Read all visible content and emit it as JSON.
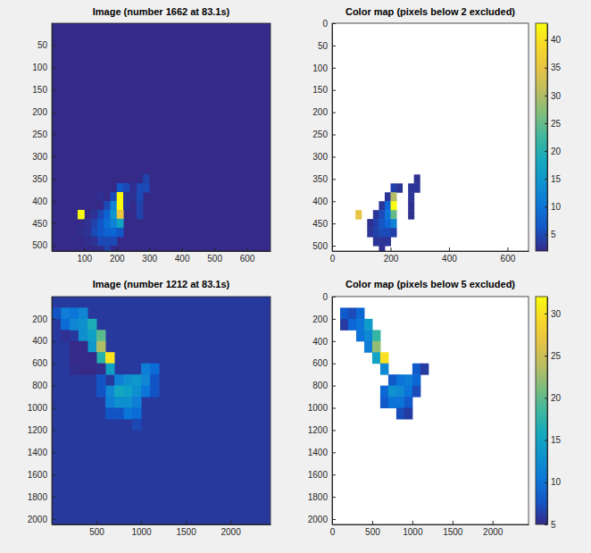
{
  "chart_data": [
    {
      "type": "heatmap",
      "cell_size": [
        20,
        20
      ],
      "background": 1,
      "image": {
        "title": "Image (number 1662 at 83.1s)",
        "xlim": [
          0.5,
          672.5
        ],
        "ylim": [
          0.5,
          512.5
        ],
        "xticks": [
          100,
          200,
          300,
          400,
          500,
          600
        ],
        "yticks": [
          50,
          100,
          150,
          200,
          250,
          300,
          350,
          400,
          450,
          500
        ],
        "clim": [
          1,
          30
        ]
      },
      "color_map": {
        "title": "Color map (pixels below 2 excluded)",
        "threshold": 2,
        "xlim": [
          0,
          672
        ],
        "ylim": [
          0,
          512
        ],
        "xticks": [
          0,
          200,
          400,
          600
        ],
        "yticks": [
          0,
          50,
          100,
          150,
          200,
          250,
          300,
          350,
          400,
          450,
          500
        ],
        "colorbar": {
          "range": [
            2,
            43
          ],
          "ticks": [
            5,
            10,
            15,
            20,
            25,
            30,
            35,
            40
          ]
        }
      },
      "cells": [
        [
          210,
          370,
          4
        ],
        [
          230,
          370,
          3
        ],
        [
          190,
          390,
          3
        ],
        [
          210,
          390,
          30
        ],
        [
          170,
          410,
          3
        ],
        [
          190,
          410,
          8
        ],
        [
          210,
          410,
          43
        ],
        [
          150,
          430,
          3
        ],
        [
          170,
          430,
          5
        ],
        [
          190,
          430,
          10
        ],
        [
          210,
          430,
          25
        ],
        [
          130,
          450,
          2.5
        ],
        [
          150,
          450,
          4
        ],
        [
          170,
          450,
          6
        ],
        [
          190,
          450,
          8
        ],
        [
          210,
          450,
          12
        ],
        [
          130,
          470,
          3
        ],
        [
          150,
          470,
          4
        ],
        [
          170,
          470,
          5
        ],
        [
          190,
          470,
          5
        ],
        [
          210,
          470,
          4
        ],
        [
          150,
          490,
          3
        ],
        [
          170,
          490,
          3
        ],
        [
          190,
          490,
          3
        ],
        [
          170,
          510,
          2.5
        ],
        [
          90,
          430,
          35
        ],
        [
          290,
          350,
          2.5
        ],
        [
          270,
          370,
          3
        ],
        [
          290,
          370,
          3
        ],
        [
          270,
          390,
          3
        ],
        [
          270,
          410,
          2.5
        ],
        [
          270,
          430,
          2.5
        ],
        [
          110,
          450,
          1.5
        ],
        [
          110,
          470,
          1.5
        ],
        [
          90,
          470,
          1.3
        ],
        [
          130,
          490,
          1.5
        ],
        [
          130,
          430,
          1.6
        ],
        [
          230,
          390,
          1.5
        ],
        [
          230,
          410,
          1.6
        ],
        [
          250,
          390,
          1.5
        ],
        [
          250,
          370,
          1.4
        ],
        [
          150,
          390,
          1.4
        ],
        [
          110,
          490,
          1.3
        ],
        [
          70,
          490,
          1.2
        ]
      ]
    },
    {
      "type": "heatmap",
      "cell_size": [
        100,
        100
      ],
      "background": 2,
      "image": {
        "title": "Image (number 1212 at 83.1s)",
        "xlim": [
          0.5,
          2448.5
        ],
        "ylim": [
          0.5,
          2048.5
        ],
        "xticks": [
          500,
          1000,
          1500,
          2000
        ],
        "yticks": [
          200,
          400,
          600,
          800,
          1000,
          1200,
          1400,
          1600,
          1800,
          2000
        ],
        "clim": [
          1,
          32
        ]
      },
      "color_map": {
        "title": "Color map (pixels below 5 excluded)",
        "threshold": 5,
        "xlim": [
          0,
          2448
        ],
        "ylim": [
          0,
          2048
        ],
        "xticks": [
          0,
          500,
          1000,
          1500,
          2000
        ],
        "yticks": [
          0,
          200,
          400,
          600,
          800,
          1000,
          1200,
          1400,
          1600,
          1800,
          2000
        ],
        "colorbar": {
          "range": [
            5,
            32
          ],
          "ticks": [
            5,
            10,
            15,
            20,
            25,
            30
          ]
        }
      },
      "cells": [
        [
          150,
          150,
          8
        ],
        [
          250,
          150,
          7
        ],
        [
          350,
          150,
          9
        ],
        [
          150,
          250,
          6
        ],
        [
          250,
          250,
          9
        ],
        [
          350,
          250,
          10
        ],
        [
          450,
          250,
          14
        ],
        [
          350,
          350,
          10
        ],
        [
          450,
          350,
          12
        ],
        [
          550,
          350,
          18
        ],
        [
          450,
          450,
          11
        ],
        [
          550,
          450,
          22
        ],
        [
          550,
          550,
          15
        ],
        [
          650,
          550,
          30
        ],
        [
          650,
          650,
          12
        ],
        [
          1050,
          650,
          8
        ],
        [
          1150,
          650,
          6
        ],
        [
          750,
          750,
          8
        ],
        [
          850,
          750,
          10
        ],
        [
          950,
          750,
          11
        ],
        [
          1050,
          750,
          9
        ],
        [
          650,
          850,
          9
        ],
        [
          750,
          850,
          13
        ],
        [
          850,
          850,
          12
        ],
        [
          950,
          850,
          10
        ],
        [
          1050,
          850,
          7
        ],
        [
          650,
          950,
          8
        ],
        [
          750,
          950,
          10
        ],
        [
          850,
          950,
          10
        ],
        [
          950,
          950,
          8
        ],
        [
          850,
          1050,
          7
        ],
        [
          950,
          1050,
          6
        ],
        [
          250,
          450,
          1
        ],
        [
          350,
          450,
          1
        ],
        [
          250,
          550,
          1
        ],
        [
          350,
          550,
          1
        ],
        [
          450,
          550,
          1
        ],
        [
          350,
          650,
          1
        ],
        [
          450,
          650,
          1
        ],
        [
          550,
          650,
          1.2
        ],
        [
          150,
          350,
          1.5
        ],
        [
          250,
          650,
          1.2
        ],
        [
          550,
          750,
          4
        ],
        [
          550,
          850,
          4
        ],
        [
          1150,
          750,
          4
        ],
        [
          1150,
          850,
          4
        ],
        [
          950,
          1150,
          3
        ],
        [
          750,
          1050,
          4
        ],
        [
          650,
          1050,
          4
        ],
        [
          50,
          150,
          4
        ]
      ]
    }
  ]
}
